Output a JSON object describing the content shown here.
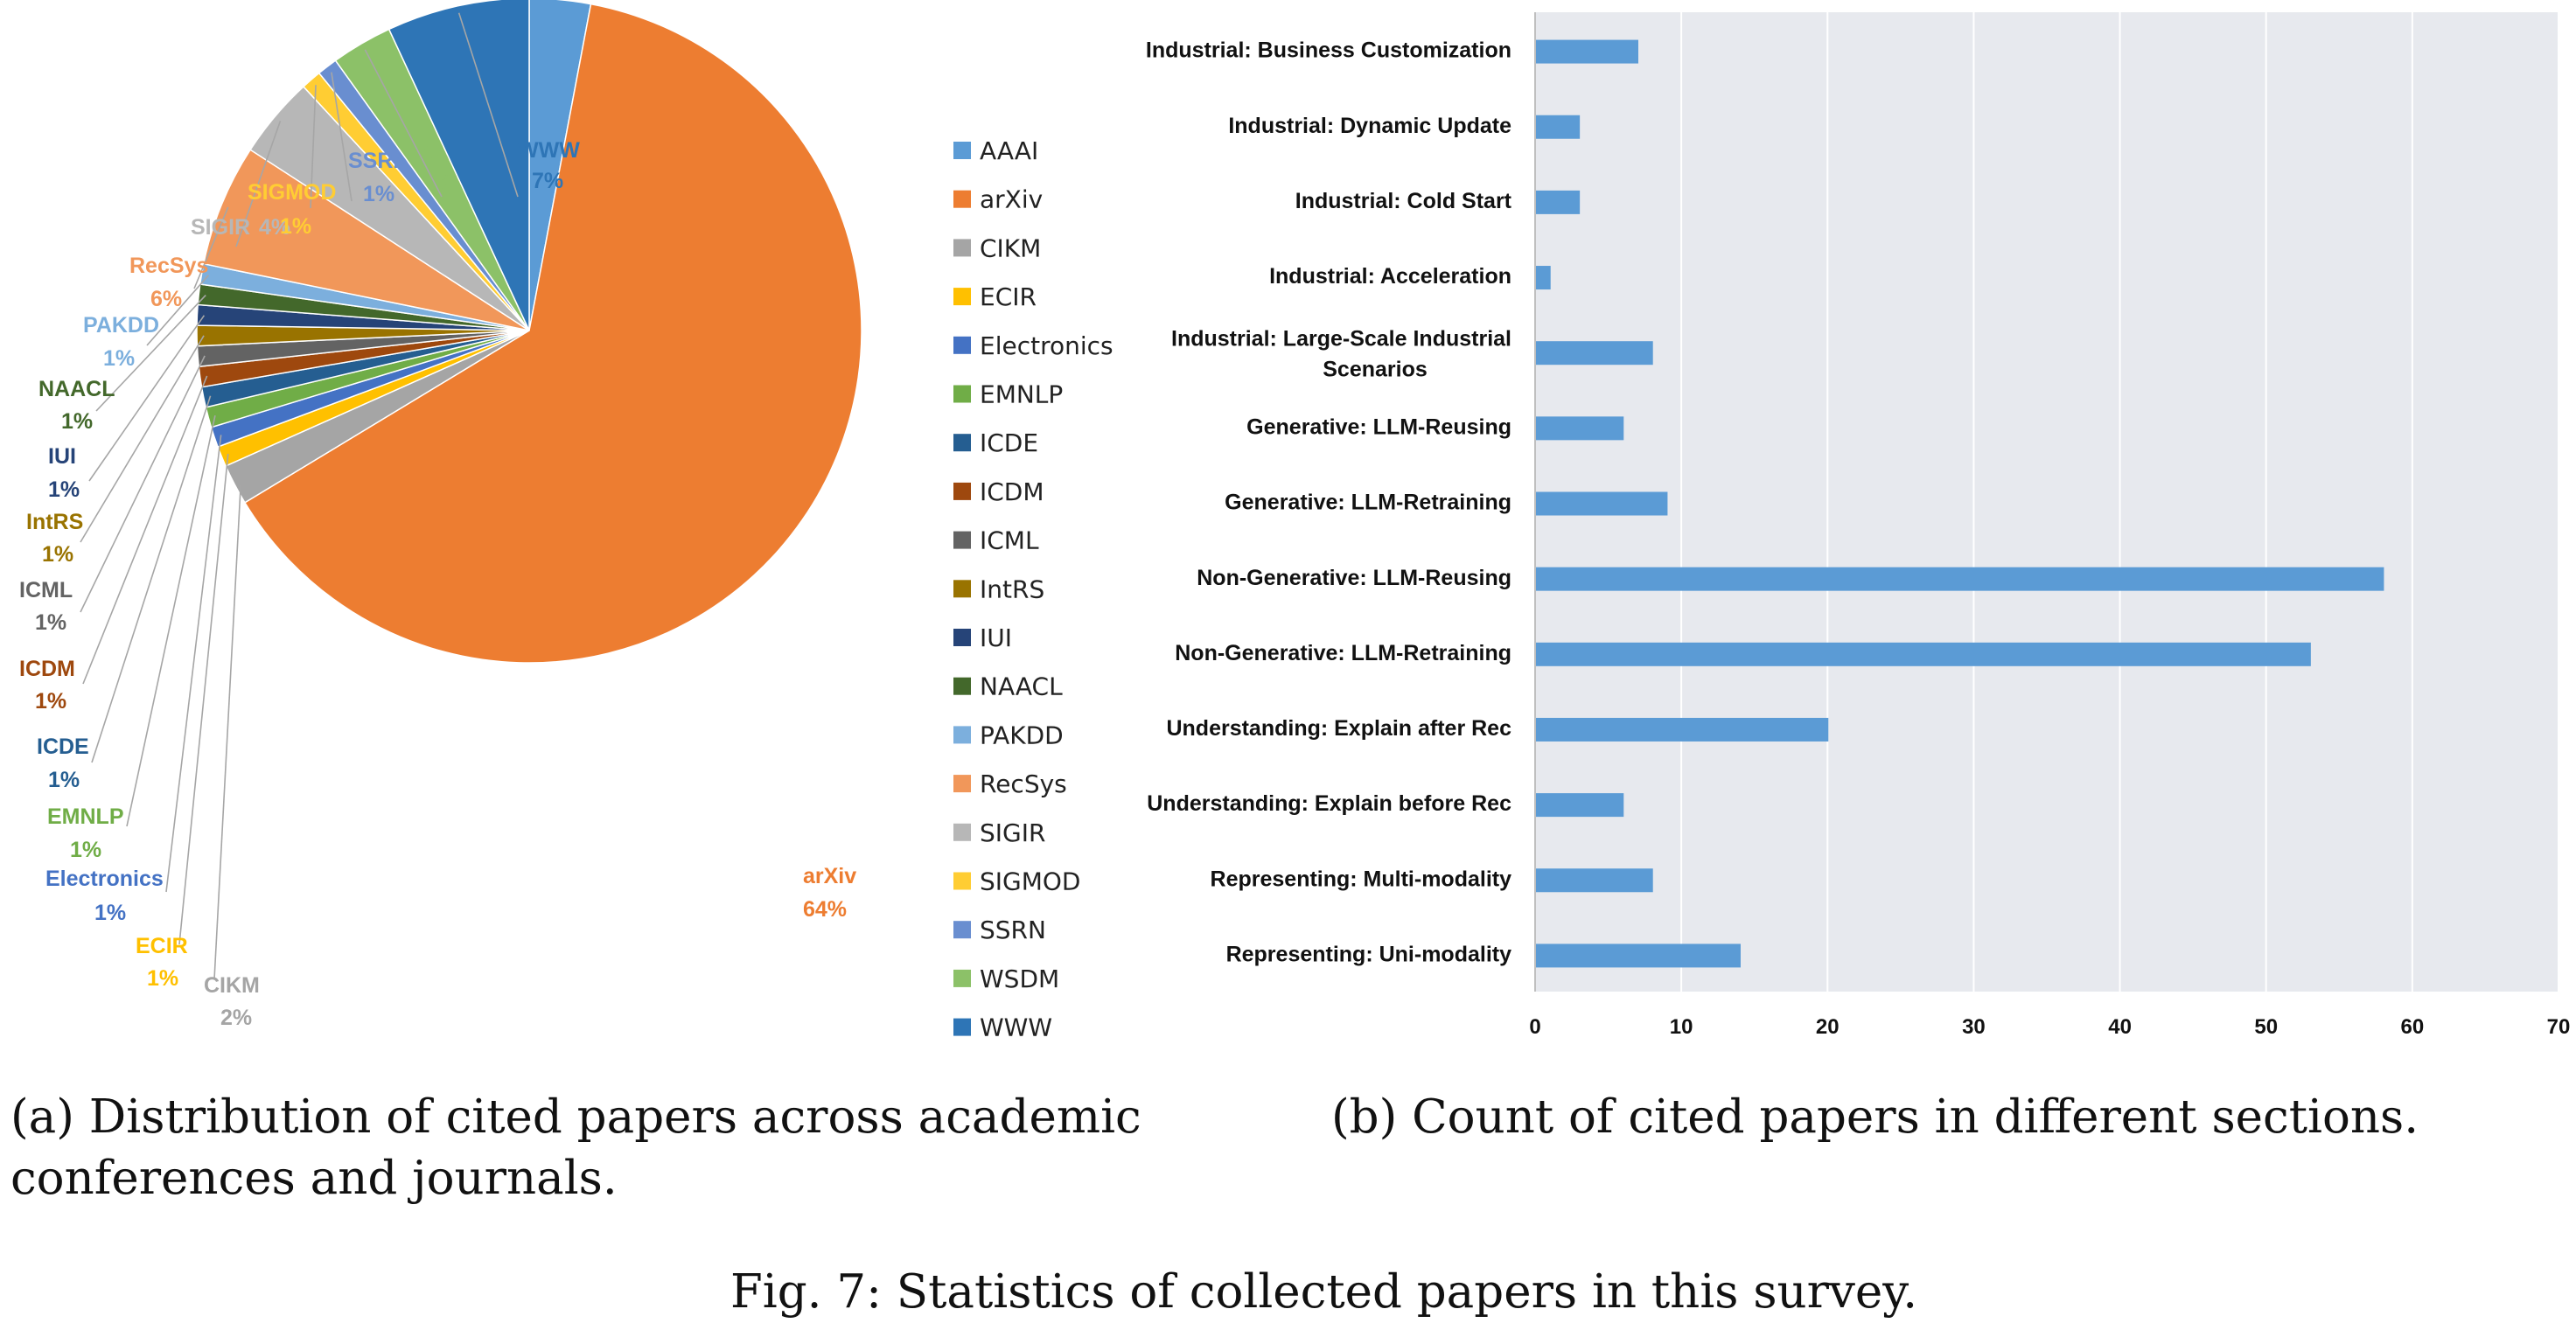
{
  "chart_data": [
    {
      "type": "pie",
      "labels": [
        "AAAI",
        "arXiv",
        "CIKM",
        "ECIR",
        "Electronics",
        "EMNLP",
        "ICDE",
        "ICDM",
        "ICML",
        "IntRS",
        "IUI",
        "NAACL",
        "PAKDD",
        "RecSys",
        "SIGIR",
        "SIGMOD",
        "SSRN",
        "WSDM",
        "WWW"
      ],
      "values": [
        3,
        64,
        2,
        1,
        1,
        1,
        1,
        1,
        1,
        1,
        1,
        1,
        1,
        6,
        4,
        1,
        1,
        3,
        7
      ],
      "value_labels": [
        "3%",
        "64%",
        "2%",
        "1%",
        "1%",
        "1%",
        "1%",
        "1%",
        "1%",
        "1%",
        "1%",
        "1%",
        "1%",
        "6%",
        "4%",
        "1%",
        "1%",
        "3%",
        "7%"
      ],
      "colors": [
        "#5B9BD5",
        "#ED7D31",
        "#A5A5A5",
        "#FFC000",
        "#4472C4",
        "#70AD47",
        "#255E91",
        "#9E480E",
        "#636363",
        "#997300",
        "#264478",
        "#43682B",
        "#7CAFDD",
        "#F1975A",
        "#B7B7B7",
        "#FFCD33",
        "#698ED0",
        "#8CC168",
        "#2E75B6"
      ],
      "legend": [
        "AAAI",
        "arXiv",
        "CIKM",
        "ECIR",
        "Electronics",
        "EMNLP",
        "ICDE",
        "ICDM",
        "ICML",
        "IntRS",
        "IUI",
        "NAACL",
        "PAKDD",
        "RecSys",
        "SIGIR",
        "SIGMOD",
        "SSRN",
        "WSDM",
        "WWW"
      ],
      "legend_position": "right",
      "caption": "(a) Distribution of cited papers across academic conferences and journals."
    },
    {
      "type": "bar",
      "orientation": "horizontal",
      "categories": [
        "Industrial: Business Customization",
        "Industrial: Dynamic Update",
        "Industrial: Cold Start",
        "Industrial: Acceleration",
        "Industrial: Large-Scale Industrial Scenarios",
        "Generative: LLM-Reusing",
        "Generative: LLM-Retraining",
        "Non-Generative: LLM-Reusing",
        "Non-Generative: LLM-Retraining",
        "Understanding: Explain after Rec",
        "Understanding: Explain before Rec",
        "Representing: Multi-modality",
        "Representing: Uni-modality"
      ],
      "values": [
        7,
        3,
        3,
        1,
        8,
        6,
        9,
        58,
        53,
        20,
        6,
        8,
        14
      ],
      "xlim": [
        0,
        70
      ],
      "xticks": [
        "0",
        "10",
        "20",
        "30",
        "40",
        "50",
        "60",
        "70"
      ],
      "grid": true,
      "bar_color": "#5B9BD5",
      "caption": "(b) Count of cited papers in different sections."
    }
  ],
  "figure_caption": "Fig. 7: Statistics of collected papers in this survey."
}
